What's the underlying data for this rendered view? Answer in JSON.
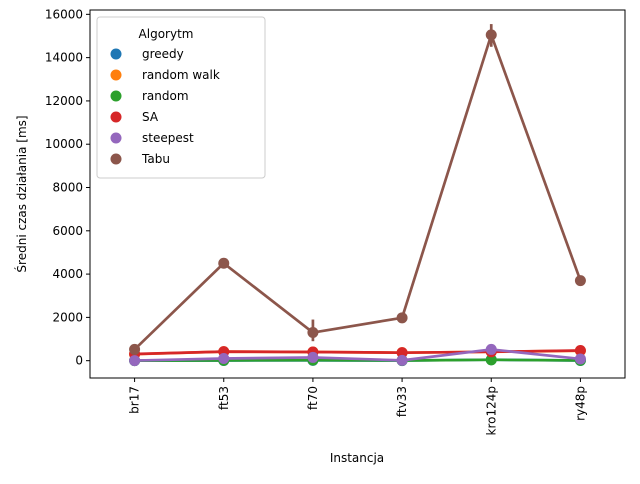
{
  "chart_data": {
    "type": "line",
    "title": "",
    "xlabel": "Instancja",
    "ylabel": "Średni czas działania [ms]",
    "categories": [
      "br17",
      "ft53",
      "ft70",
      "ftv33",
      "kro124p",
      "ry48p"
    ],
    "ylim": [
      -800,
      16200
    ],
    "yticks": [
      0,
      2000,
      4000,
      6000,
      8000,
      10000,
      12000,
      14000,
      16000
    ],
    "grid": false,
    "legend": {
      "title": "Algorytm",
      "placement": "upper-left"
    },
    "series": [
      {
        "name": "greedy",
        "color": "#1f77b4",
        "values": [
          2,
          10,
          15,
          5,
          45,
          8
        ]
      },
      {
        "name": "random walk",
        "color": "#ff7f0e",
        "values": [
          300,
          420,
          400,
          370,
          410,
          460
        ]
      },
      {
        "name": "random",
        "color": "#2ca02c",
        "values": [
          3,
          15,
          25,
          8,
          40,
          12
        ]
      },
      {
        "name": "SA",
        "color": "#d62728",
        "values": [
          310,
          420,
          400,
          370,
          410,
          470
        ]
      },
      {
        "name": "steepest",
        "color": "#9467bd",
        "values": [
          5,
          100,
          150,
          15,
          520,
          80
        ]
      },
      {
        "name": "Tabu",
        "color": "#8c564b",
        "values": [
          520,
          4500,
          1300,
          1980,
          15050,
          3700
        ],
        "errors": [
          [
            480,
            560
          ],
          [
            4350,
            4650
          ],
          [
            900,
            1900
          ],
          [
            1950,
            2010
          ],
          [
            14500,
            15550
          ],
          [
            3650,
            3750
          ]
        ]
      }
    ]
  }
}
